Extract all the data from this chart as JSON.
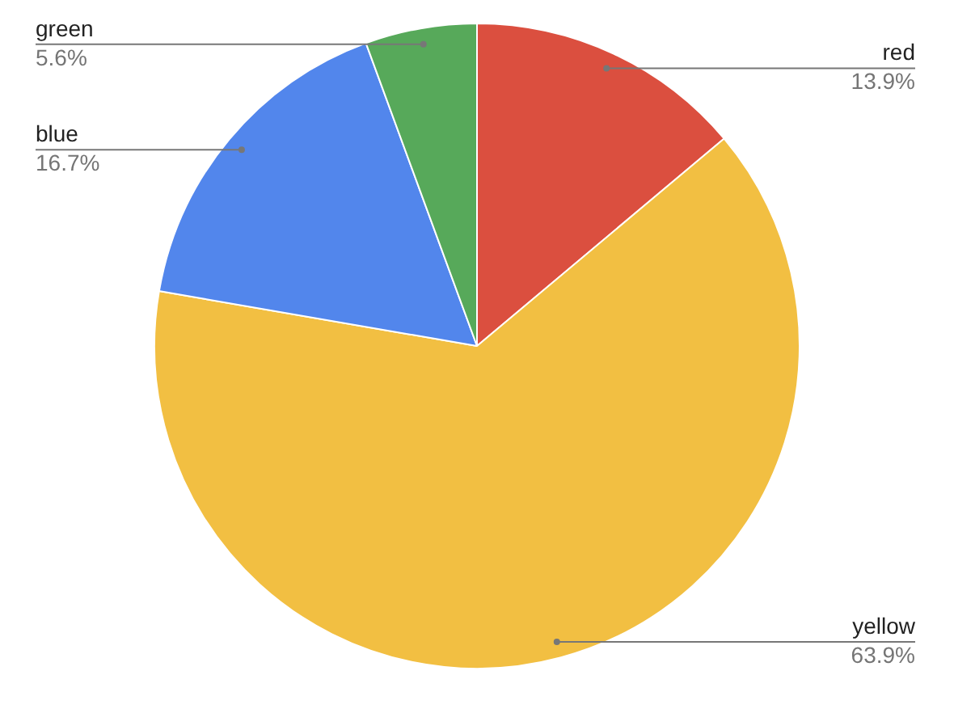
{
  "chart_data": {
    "type": "pie",
    "categories": [
      "red",
      "yellow",
      "blue",
      "green"
    ],
    "values": [
      13.9,
      63.9,
      16.7,
      5.6
    ],
    "value_labels": [
      "13.9%",
      "63.9%",
      "16.7%",
      "5.6%"
    ],
    "colors": [
      "#db4f3f",
      "#f2bf42",
      "#5286ec",
      "#57a95a"
    ],
    "legend": false
  }
}
